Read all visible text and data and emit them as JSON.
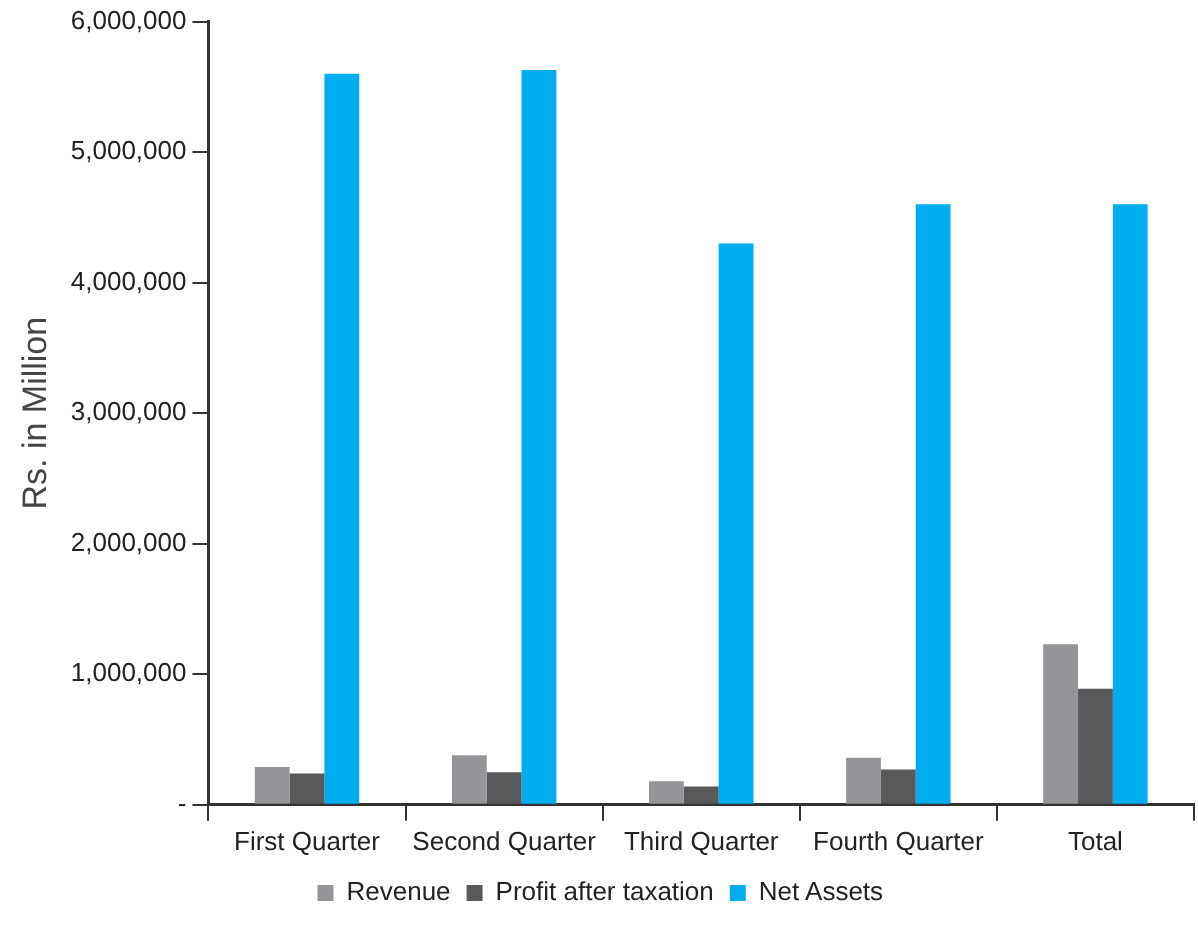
{
  "chart_data": {
    "type": "bar",
    "ylabel": "Rs. in Million",
    "categories": [
      "First Quarter",
      "Second Quarter",
      "Third Quarter",
      "Fourth Quarter",
      "Total"
    ],
    "series": [
      {
        "name": "Revenue",
        "color": "#939598",
        "values": [
          290000,
          380000,
          180000,
          360000,
          1230000
        ]
      },
      {
        "name": "Profit after taxation",
        "color": "#58595b",
        "values": [
          240000,
          250000,
          140000,
          270000,
          890000
        ]
      },
      {
        "name": "Net Assets",
        "color": "#00aeef",
        "values": [
          5600000,
          5630000,
          4300000,
          4600000,
          4600000
        ]
      }
    ],
    "ylim": [
      0,
      6000000
    ],
    "yticks": [
      {
        "value": 0,
        "label": "-"
      },
      {
        "value": 1000000,
        "label": "1,000,000"
      },
      {
        "value": 2000000,
        "label": "2,000,000"
      },
      {
        "value": 3000000,
        "label": "3,000,000"
      },
      {
        "value": 4000000,
        "label": "4,000,000"
      },
      {
        "value": 5000000,
        "label": "5,000,000"
      },
      {
        "value": 6000000,
        "label": "6,000,000"
      }
    ],
    "grid": false,
    "legend": "bottom"
  }
}
